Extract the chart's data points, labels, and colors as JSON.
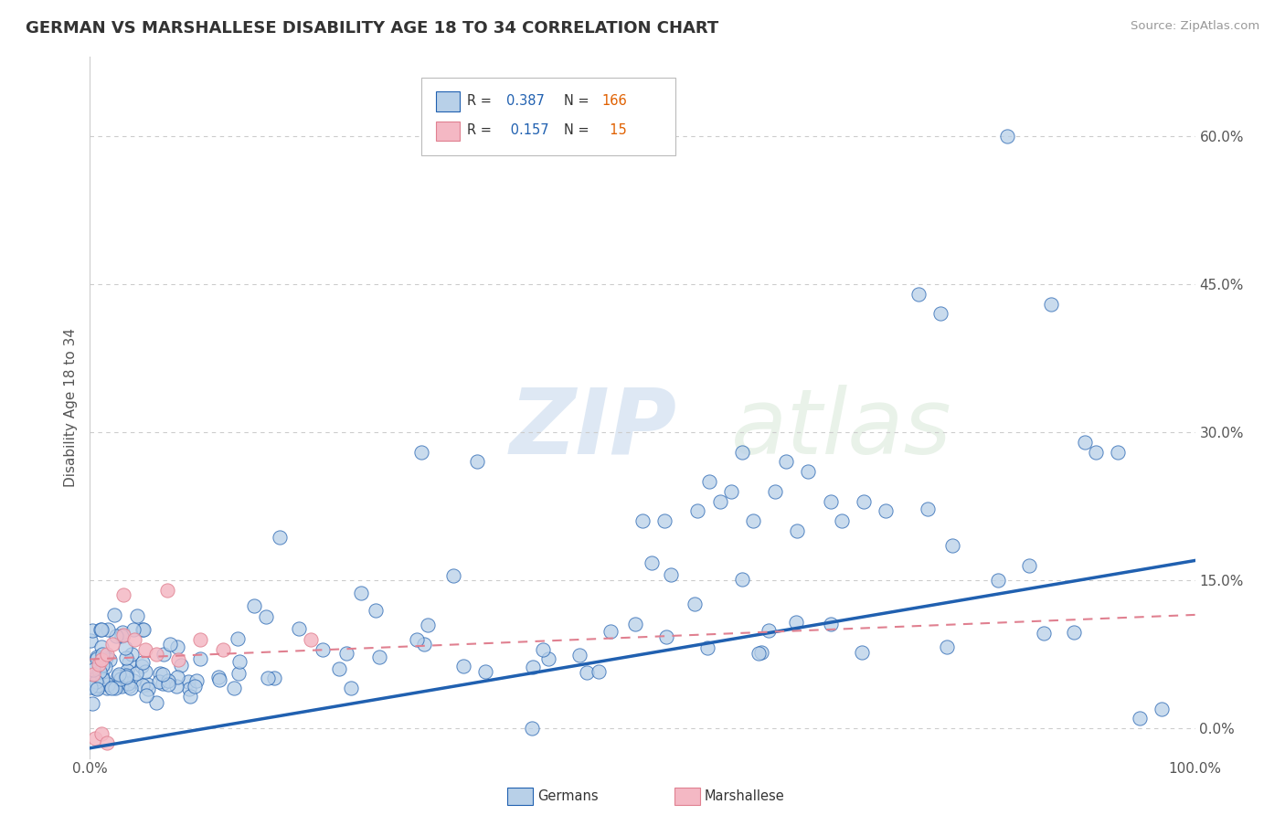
{
  "title": "GERMAN VS MARSHALLESE DISABILITY AGE 18 TO 34 CORRELATION CHART",
  "source": "Source: ZipAtlas.com",
  "ylabel": "Disability Age 18 to 34",
  "xlim": [
    0,
    1.0
  ],
  "ylim": [
    -0.03,
    0.68
  ],
  "ytick_positions": [
    0.0,
    0.15,
    0.3,
    0.45,
    0.6
  ],
  "yticklabels": [
    "0.0%",
    "15.0%",
    "30.0%",
    "45.0%",
    "60.0%"
  ],
  "xtick_positions": [
    0.0,
    0.2,
    0.4,
    0.6,
    0.8,
    1.0
  ],
  "xticklabels": [
    "0.0%",
    "",
    "",
    "",
    "",
    "100.0%"
  ],
  "german_R": 0.387,
  "german_N": 166,
  "marshallese_R": 0.157,
  "marshallese_N": 15,
  "german_color": "#b8d0e8",
  "marshallese_color": "#f4b8c4",
  "german_line_color": "#2060b0",
  "marshallese_line_color": "#e08090",
  "watermark_zip": "ZIP",
  "watermark_atlas": "atlas",
  "background_color": "#ffffff",
  "grid_color": "#cccccc",
  "title_color": "#333333",
  "axis_label_color": "#555555",
  "tick_color": "#555555",
  "legend_R_color": "#2060b0",
  "legend_N_color": "#e06000",
  "german_line_start_y": -0.02,
  "german_line_end_y": 0.17,
  "marshallese_line_start_y": 0.07,
  "marshallese_line_end_y": 0.115
}
